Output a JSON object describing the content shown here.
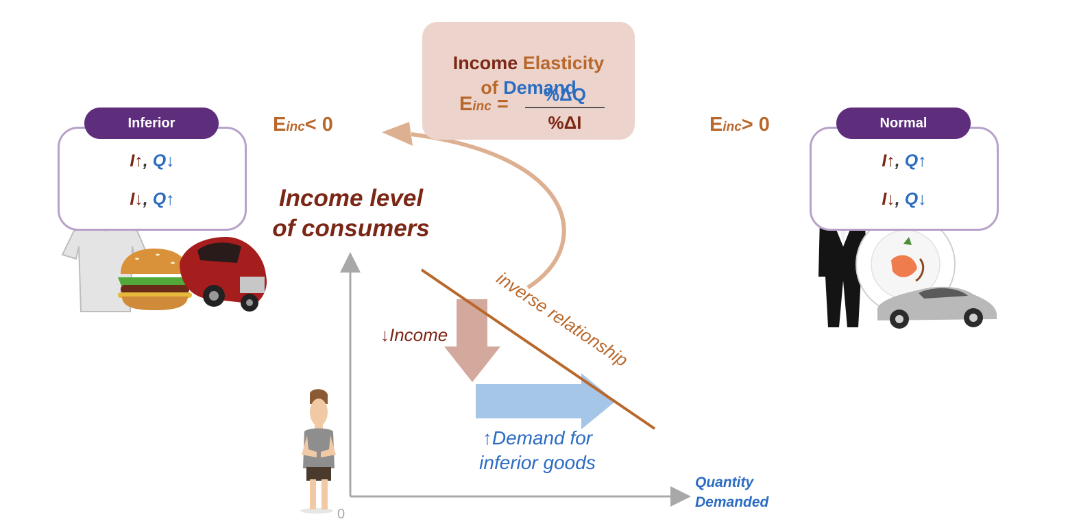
{
  "formula": {
    "title_part1": "Income",
    "title_part2": "Elasticity",
    "title_part3": "of",
    "title_part4": "Demand",
    "lhs_symbol": "E",
    "lhs_sub": "inc",
    "equals": "=",
    "numerator": "%ΔQ",
    "denominator": "%ΔI"
  },
  "inferior": {
    "tab_label": "Inferior",
    "line1_i": "I↑",
    "line1_sep": ",",
    "line1_q": "Q↓",
    "line2_i": "I↓",
    "line2_sep": ",",
    "line2_q": "Q↑",
    "elasticity_symbol": "E",
    "elasticity_sub": "inc",
    "elasticity_rel": "< 0"
  },
  "normal": {
    "tab_label": "Normal",
    "line1_i": "I↑",
    "line1_sep": ",",
    "line1_q": "Q↑",
    "line2_i": "I↓",
    "line2_sep": ",",
    "line2_q": "Q↓",
    "elasticity_symbol": "E",
    "elasticity_sub": "inc",
    "elasticity_rel": "> 0"
  },
  "graph": {
    "y_axis_label_line1": "Income level",
    "y_axis_label_line2": "of consumers",
    "x_axis_label_line1": "Quantity",
    "x_axis_label_line2": "Demanded",
    "origin_label": "0",
    "curve_label": "inverse relationship",
    "income_change_label": "↓Income",
    "demand_change_line1": "↑Demand for",
    "demand_change_line2": "inferior goods"
  },
  "colors": {
    "dark_red": "#7b2716",
    "brown": "#b9682c",
    "blue": "#2b6cc2",
    "purple_tab": "#5e2e7c",
    "card_border": "#b7a1c9",
    "formula_bg": "#ecd3cb"
  },
  "icons": {
    "inferior_goods": [
      "tshirt-icon",
      "burger-icon",
      "old-car-icon"
    ],
    "normal_goods": [
      "tuxedo-icon",
      "fine-dining-plate-icon",
      "luxury-car-icon"
    ],
    "consumer": "poor-man-icon"
  }
}
